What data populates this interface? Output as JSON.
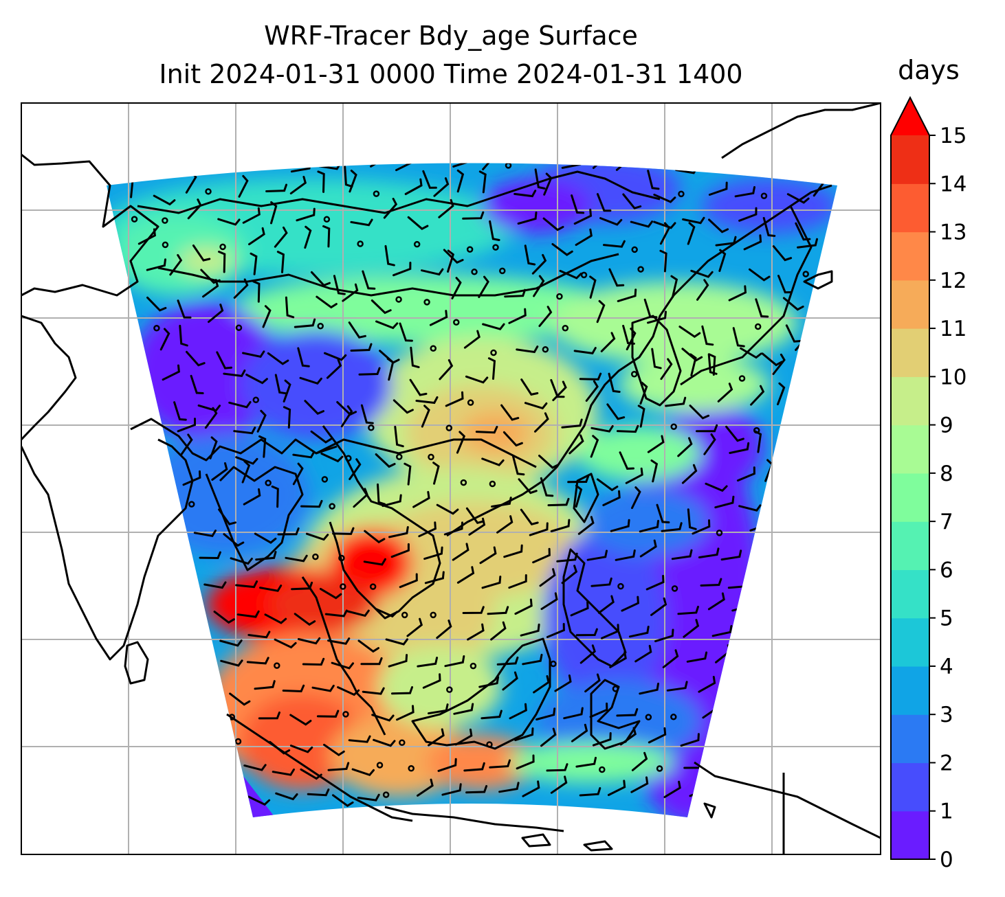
{
  "title": {
    "line1": "WRF-Tracer Bdy_age Surface",
    "line2": "Init 2024-01-31 0000 Time 2024-01-31 1400"
  },
  "colorbar": {
    "unit": "days",
    "levels": [
      0,
      1,
      2,
      3,
      4,
      5,
      6,
      7,
      8,
      9,
      10,
      11,
      12,
      13,
      14,
      15
    ],
    "extend": "max",
    "colors": [
      "#6a1cff",
      "#474dfd",
      "#2b7af3",
      "#10a4e6",
      "#1cc7d8",
      "#35e1c7",
      "#55f2b2",
      "#7ffd9c",
      "#a8fb94",
      "#c6ee8a",
      "#e2cf74",
      "#f6ab59",
      "#ff8848",
      "#fd5c31",
      "#ee2f16",
      "#ff0000"
    ]
  },
  "map": {
    "gridlines": true,
    "coastlines": true,
    "field_colors": {
      "outer_band_purple": "#6a1cff",
      "south_china_sea_warm": "#f6ab59",
      "gulf_of_thailand_red": "#ff0000",
      "western_pacific_cold": "#6a1cff",
      "china_cyan": "#10a4e6"
    }
  }
}
